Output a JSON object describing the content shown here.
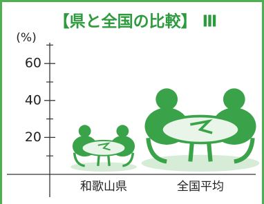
{
  "chart_data": {
    "type": "pictograph",
    "title": "【県と全国の比較】 Ⅲ",
    "y_label": "(%)",
    "categories": [
      "和歌山県",
      "全国平均"
    ],
    "values": [
      27,
      47
    ],
    "color": "#3aa34a",
    "ylim": [
      0,
      72
    ],
    "yticks": [
      20,
      40,
      60
    ],
    "minor_yticks": [
      10,
      30,
      50,
      70
    ]
  }
}
